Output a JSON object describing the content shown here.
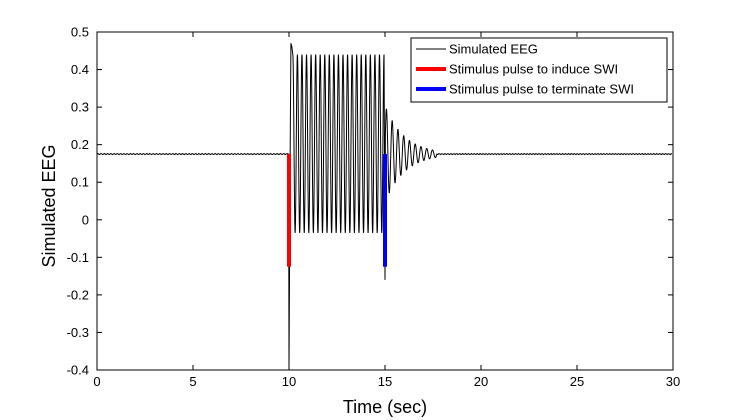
{
  "chart_data": {
    "type": "line",
    "xlabel": "Time (sec)",
    "ylabel": "Simulated EEG",
    "xlim": [
      0,
      30
    ],
    "ylim": [
      -0.4,
      0.5
    ],
    "xticks": [
      0,
      5,
      10,
      15,
      20,
      25,
      30
    ],
    "yticks": [
      -0.4,
      -0.3,
      -0.2,
      -0.1,
      0,
      0.1,
      0.2,
      0.3,
      0.4,
      0.5
    ],
    "xtick_labels": [
      "0",
      "5",
      "10",
      "15",
      "20",
      "25",
      "30"
    ],
    "ytick_labels": [
      "-0.4",
      "-0.3",
      "-0.2",
      "-0.1",
      "0",
      "0.1",
      "0.2",
      "0.3",
      "0.4",
      "0.5"
    ],
    "grid": false,
    "legend_position": "top-right",
    "legend": [
      "Simulated EEG",
      "Stimulus pulse to induce SWI",
      "Stimulus pulse to terminate SWI"
    ],
    "series": [
      {
        "name": "Simulated EEG",
        "color": "#000000",
        "baseline": 0.175,
        "x": [
          0,
          9.98,
          10.0,
          10.1,
          10.2,
          10.35,
          10.5,
          15.0,
          15.2,
          15.5,
          16.0,
          16.5,
          17.0,
          17.5,
          30
        ],
        "y": [
          0.175,
          0.175,
          -0.4,
          0.47,
          0.43,
          -0.04,
          0.44,
          -0.16,
          0.3,
          0.04,
          0.1,
          0.2,
          0.16,
          0.175,
          0.175
        ],
        "oscillation": {
          "start": 10.2,
          "end": 14.95,
          "cycles": 20,
          "upper": 0.44,
          "lower": -0.035
        },
        "ringdown": {
          "start": 15.0,
          "end": 17.7,
          "cycles": 9,
          "center": 0.175,
          "amplitude": 0.13,
          "decay": 1.0
        }
      },
      {
        "name": "Stimulus pulse to induce SWI",
        "color": "#ff0000",
        "x": [
          10.0,
          10.0
        ],
        "y": [
          -0.125,
          0.175
        ]
      },
      {
        "name": "Stimulus pulse to terminate SWI",
        "color": "#0000ff",
        "x": [
          15.0,
          15.0
        ],
        "y": [
          -0.125,
          0.175
        ]
      }
    ]
  }
}
